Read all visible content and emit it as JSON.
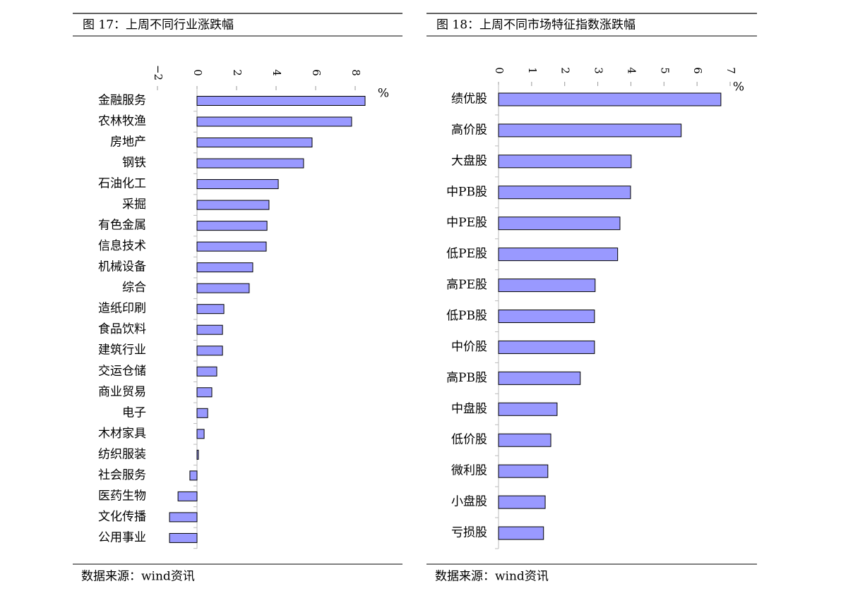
{
  "chart_data": [
    {
      "type": "bar",
      "orientation": "horizontal",
      "title": "图 17：上周不同行业涨跌幅",
      "xlabel": "%",
      "source": "数据来源：wind资讯",
      "color": "#9999ff",
      "categories": [
        "金融服务",
        "农林牧渔",
        "房地产",
        "钢铁",
        "石油化工",
        "采掘",
        "有色金属",
        "信息技术",
        "机械设备",
        "综合",
        "造纸印刷",
        "食品饮料",
        "建筑行业",
        "交运仓储",
        "商业贸易",
        "电子",
        "木材家具",
        "纺织服装",
        "社会服务",
        "医药生物",
        "文化传播",
        "公用事业"
      ],
      "values": [
        8.5,
        7.82,
        5.82,
        5.39,
        4.11,
        3.64,
        3.54,
        3.5,
        2.82,
        2.64,
        1.36,
        1.29,
        1.29,
        1.0,
        0.75,
        0.54,
        0.36,
        0.07,
        -0.36,
        -0.96,
        -1.39,
        -1.39
      ],
      "xlim": [
        -2,
        9
      ],
      "xticks": [
        {
          "value": -2,
          "label": "−2"
        },
        0,
        2,
        4,
        6,
        8
      ]
    },
    {
      "type": "bar",
      "orientation": "horizontal",
      "title": "图 18：上周不同市场特征指数涨跌幅",
      "xlabel": "%",
      "source": "数据来源：wind资讯",
      "color": "#9999ff",
      "categories": [
        "绩优股",
        "高价股",
        "大盘股",
        "中PB股",
        "中PE股",
        "低PE股",
        "高PE股",
        "低PB股",
        "中价股",
        "高PB股",
        "中盘股",
        "低价股",
        "微利股",
        "小盘股",
        "亏损股"
      ],
      "values": [
        6.72,
        5.52,
        4.01,
        3.99,
        3.67,
        3.6,
        2.92,
        2.9,
        2.9,
        2.47,
        1.77,
        1.58,
        1.49,
        1.41,
        1.36
      ],
      "xlim": [
        0,
        7
      ],
      "xticks": [
        0,
        1,
        2,
        3,
        4,
        5,
        6,
        7
      ]
    }
  ]
}
